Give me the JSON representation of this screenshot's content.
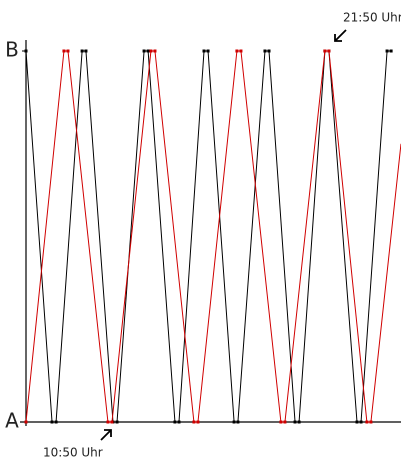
{
  "chart_data": {
    "type": "line",
    "xlim": [
      6.77,
      25.35
    ],
    "ylim": [
      0,
      1
    ],
    "yticks": [
      {
        "value": 0,
        "label": "A"
      },
      {
        "value": 1,
        "label": "B"
      }
    ],
    "annotations": [
      {
        "text": "10:50 Uhr",
        "x": 10.83,
        "y": 0
      },
      {
        "text": "21:50 Uhr",
        "x": 21.78,
        "y": 1
      }
    ],
    "series": [
      {
        "color": "#000000",
        "x": [
          6.77,
          8.06,
          8.26,
          9.55,
          9.74,
          11.08,
          11.28,
          12.62,
          12.82,
          14.15,
          14.35,
          15.59,
          15.79,
          17.08,
          17.27,
          18.61,
          18.81,
          20.1,
          20.3,
          21.58,
          21.78,
          23.17,
          23.37,
          24.66,
          24.86
        ],
        "values": [
          1,
          0,
          0,
          1,
          1,
          0,
          0,
          1,
          1,
          0,
          0,
          1,
          1,
          0,
          0,
          1,
          1,
          0,
          0,
          1,
          1,
          0,
          0,
          1,
          1
        ]
      },
      {
        "color": "#d00000",
        "x": [
          6.77,
          8.65,
          8.85,
          10.83,
          11.03,
          12.96,
          13.16,
          15.09,
          15.29,
          17.22,
          17.42,
          19.4,
          19.6,
          21.58,
          21.78,
          23.66,
          23.86,
          25.35
        ],
        "values": [
          0,
          1,
          1,
          0,
          0,
          1,
          1,
          0,
          0,
          1,
          1,
          0,
          0,
          1,
          1,
          0,
          0,
          0.75
        ]
      }
    ]
  }
}
